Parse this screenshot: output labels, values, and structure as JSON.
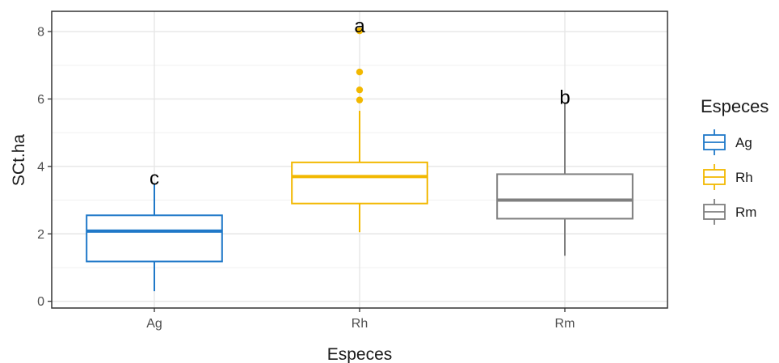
{
  "chart_data": {
    "type": "boxplot",
    "xlabel": "Especes",
    "ylabel": "SCt.ha",
    "ylim": [
      -0.2,
      8.6
    ],
    "yticks": [
      0,
      2,
      4,
      6,
      8
    ],
    "grid": true,
    "legend": {
      "title": "Especes",
      "position": "right"
    },
    "categories": [
      "Ag",
      "Rh",
      "Rm"
    ],
    "colors": {
      "Ag": "#1f78c8",
      "Rh": "#f2b800",
      "Rm": "#7f7f7f"
    },
    "groups": [
      {
        "name": "Ag",
        "min": 0.3,
        "q1": 1.18,
        "median": 2.08,
        "q3": 2.55,
        "max": 3.5,
        "outliers": [],
        "sig_letter": "c"
      },
      {
        "name": "Rh",
        "min": 2.05,
        "q1": 2.9,
        "median": 3.7,
        "q3": 4.12,
        "max": 5.65,
        "outliers": [
          5.97,
          6.27,
          6.8,
          8.02
        ],
        "sig_letter": "a"
      },
      {
        "name": "Rm",
        "min": 1.35,
        "q1": 2.45,
        "median": 3.0,
        "q3": 3.77,
        "max": 5.9,
        "outliers": [],
        "sig_letter": "b"
      }
    ]
  }
}
